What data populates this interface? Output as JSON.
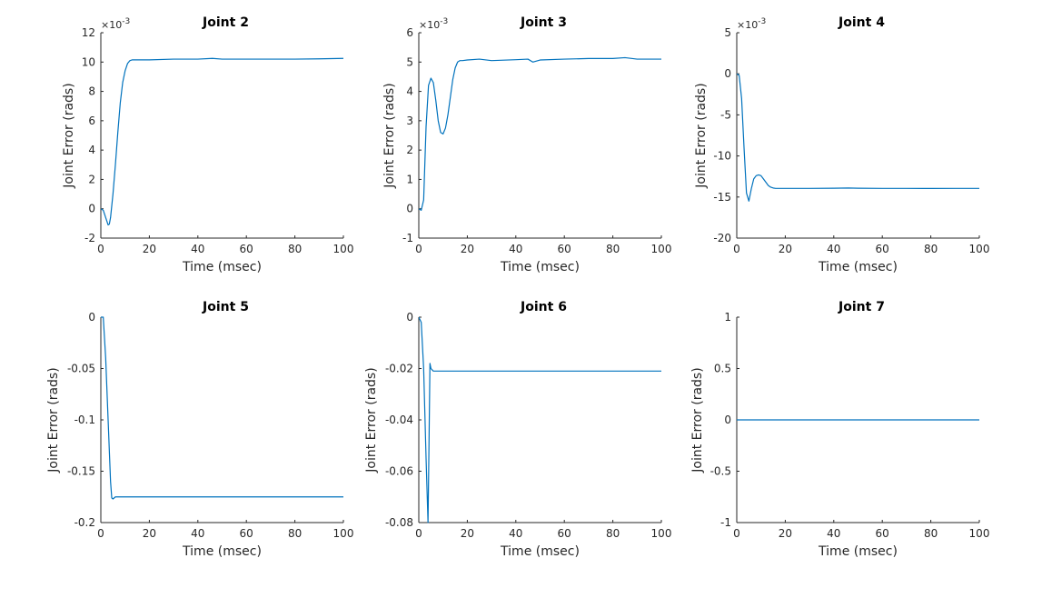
{
  "figure": {
    "background": "#ffffff",
    "line_color": "#0072bd",
    "axis_color": "#262626"
  },
  "chart_data": [
    {
      "type": "line",
      "title": "Joint 2",
      "xlabel": "Time (msec)",
      "ylabel": "Joint Error (rads)",
      "xlim": [
        0,
        100
      ],
      "ylim": [
        -2,
        12
      ],
      "xticks": [
        0,
        20,
        40,
        60,
        80,
        100
      ],
      "yticks": [
        -2,
        0,
        2,
        4,
        6,
        8,
        10,
        12
      ],
      "xtick_labels": [
        "0",
        "20",
        "40",
        "60",
        "80",
        "100"
      ],
      "ytick_labels": [
        "-2",
        "0",
        "2",
        "4",
        "6",
        "8",
        "10",
        "12"
      ],
      "exponent_base": "×10",
      "exponent_power": "-3",
      "series": [
        {
          "name": "Joint 2",
          "x": [
            0,
            1,
            2,
            3,
            3.5,
            4,
            5,
            6,
            7,
            8,
            9,
            10,
            11,
            12,
            13,
            14,
            15,
            20,
            30,
            40,
            46,
            50,
            60,
            70,
            80,
            90,
            100
          ],
          "y": [
            0,
            -0.1,
            -0.6,
            -1.1,
            -1.05,
            -0.6,
            1.0,
            3.0,
            5.2,
            7.2,
            8.6,
            9.4,
            9.9,
            10.1,
            10.15,
            10.15,
            10.15,
            10.15,
            10.2,
            10.2,
            10.25,
            10.2,
            10.2,
            10.2,
            10.2,
            10.22,
            10.25
          ]
        }
      ]
    },
    {
      "type": "line",
      "title": "Joint 3",
      "xlabel": "Time (msec)",
      "ylabel": "Joint Error (rads)",
      "xlim": [
        0,
        100
      ],
      "ylim": [
        -1,
        6
      ],
      "xticks": [
        0,
        20,
        40,
        60,
        80,
        100
      ],
      "yticks": [
        -1,
        0,
        1,
        2,
        3,
        4,
        5,
        6
      ],
      "xtick_labels": [
        "0",
        "20",
        "40",
        "60",
        "80",
        "100"
      ],
      "ytick_labels": [
        "-1",
        "0",
        "1",
        "2",
        "3",
        "4",
        "5",
        "6"
      ],
      "exponent_base": "×10",
      "exponent_power": "-3",
      "series": [
        {
          "name": "Joint 3",
          "x": [
            0,
            1,
            2,
            3,
            4,
            5,
            6,
            7,
            8,
            9,
            10,
            11,
            12,
            13,
            14,
            15,
            16,
            17,
            18,
            20,
            25,
            30,
            40,
            45,
            47,
            50,
            60,
            70,
            80,
            85,
            90,
            100
          ],
          "y": [
            0,
            -0.05,
            0.3,
            2.8,
            4.2,
            4.45,
            4.3,
            3.7,
            3.0,
            2.6,
            2.55,
            2.75,
            3.2,
            3.8,
            4.4,
            4.8,
            5.0,
            5.05,
            5.05,
            5.07,
            5.1,
            5.05,
            5.08,
            5.1,
            5.0,
            5.07,
            5.1,
            5.12,
            5.12,
            5.15,
            5.1,
            5.1
          ]
        }
      ]
    },
    {
      "type": "line",
      "title": "Joint 4",
      "xlabel": "Time (msec)",
      "ylabel": "Joint Error (rads)",
      "xlim": [
        0,
        100
      ],
      "ylim": [
        -20,
        5
      ],
      "xticks": [
        0,
        20,
        40,
        60,
        80,
        100
      ],
      "yticks": [
        -20,
        -15,
        -10,
        -5,
        0,
        5
      ],
      "xtick_labels": [
        "0",
        "20",
        "40",
        "60",
        "80",
        "100"
      ],
      "ytick_labels": [
        "-20",
        "-15",
        "-10",
        "-5",
        "0",
        "5"
      ],
      "exponent_base": "×10",
      "exponent_power": "-3",
      "series": [
        {
          "name": "Joint 4",
          "x": [
            0,
            1,
            2,
            3,
            4,
            5,
            6,
            7,
            8,
            9,
            10,
            11,
            12,
            13,
            14,
            15,
            16,
            18,
            20,
            30,
            40,
            46,
            50,
            60,
            70,
            80,
            90,
            100
          ],
          "y": [
            0,
            -0.2,
            -3.0,
            -9.0,
            -14.5,
            -15.5,
            -14.0,
            -12.8,
            -12.4,
            -12.3,
            -12.4,
            -12.8,
            -13.2,
            -13.6,
            -13.8,
            -13.9,
            -13.95,
            -13.95,
            -13.95,
            -13.95,
            -13.93,
            -13.9,
            -13.93,
            -13.95,
            -13.95,
            -13.96,
            -13.95,
            -13.95
          ]
        }
      ]
    },
    {
      "type": "line",
      "title": "Joint 5",
      "xlabel": "Time (msec)",
      "ylabel": "Joint Error (rads)",
      "xlim": [
        0,
        100
      ],
      "ylim": [
        -0.2,
        0
      ],
      "xticks": [
        0,
        20,
        40,
        60,
        80,
        100
      ],
      "yticks": [
        -0.2,
        -0.15,
        -0.1,
        -0.05,
        0
      ],
      "xtick_labels": [
        "0",
        "20",
        "40",
        "60",
        "80",
        "100"
      ],
      "ytick_labels": [
        "-0.2",
        "-0.15",
        "-0.1",
        "-0.05",
        "0"
      ],
      "series": [
        {
          "name": "Joint 5",
          "x": [
            0,
            1,
            2,
            3,
            4,
            4.5,
            5,
            6,
            8,
            10,
            20,
            40,
            60,
            80,
            100
          ],
          "y": [
            0,
            0,
            -0.04,
            -0.1,
            -0.16,
            -0.176,
            -0.177,
            -0.175,
            -0.175,
            -0.175,
            -0.175,
            -0.175,
            -0.175,
            -0.175,
            -0.175
          ]
        }
      ]
    },
    {
      "type": "line",
      "title": "Joint 6",
      "xlabel": "Time (msec)",
      "ylabel": "Joint Error (rads)",
      "xlim": [
        0,
        100
      ],
      "ylim": [
        -0.08,
        0
      ],
      "xticks": [
        0,
        20,
        40,
        60,
        80,
        100
      ],
      "yticks": [
        -0.08,
        -0.06,
        -0.04,
        -0.02,
        0
      ],
      "xtick_labels": [
        "0",
        "20",
        "40",
        "60",
        "80",
        "100"
      ],
      "ytick_labels": [
        "-0.08",
        "-0.06",
        "-0.04",
        "-0.02",
        "0"
      ],
      "series": [
        {
          "name": "Joint 6",
          "x": [
            0,
            1,
            2,
            3,
            3.8,
            4.2,
            4.6,
            5,
            6,
            8,
            10,
            20,
            40,
            60,
            80,
            100
          ],
          "y": [
            0,
            -0.002,
            -0.02,
            -0.055,
            -0.08,
            -0.05,
            -0.018,
            -0.02,
            -0.021,
            -0.021,
            -0.021,
            -0.021,
            -0.021,
            -0.021,
            -0.021,
            -0.021
          ]
        }
      ]
    },
    {
      "type": "line",
      "title": "Joint 7",
      "xlabel": "Time (msec)",
      "ylabel": "Joint Error (rads)",
      "xlim": [
        0,
        100
      ],
      "ylim": [
        -1,
        1
      ],
      "xticks": [
        0,
        20,
        40,
        60,
        80,
        100
      ],
      "yticks": [
        -1,
        -0.5,
        0,
        0.5,
        1
      ],
      "xtick_labels": [
        "0",
        "20",
        "40",
        "60",
        "80",
        "100"
      ],
      "ytick_labels": [
        "-1",
        "-0.5",
        "0",
        "0.5",
        "1"
      ],
      "series": [
        {
          "name": "Joint 7",
          "x": [
            0,
            100
          ],
          "y": [
            0,
            0
          ]
        }
      ]
    }
  ]
}
